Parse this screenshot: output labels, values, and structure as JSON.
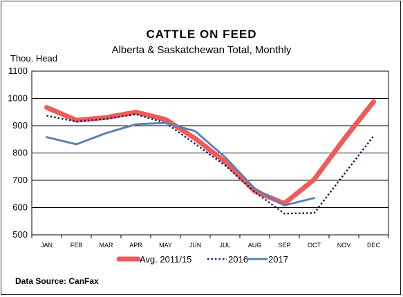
{
  "chart_data": {
    "type": "line",
    "title": "CATTLE  ON  FEED",
    "subtitle": "Alberta & Saskatchewan Total, Monthly",
    "ylabel": "Thou. Head",
    "xlabel": "",
    "categories": [
      "JAN",
      "FEB",
      "MAR",
      "APR",
      "MAY",
      "JUN",
      "JUL",
      "AUG",
      "SEP",
      "OCT",
      "NOV",
      "DEC"
    ],
    "ylim": [
      500,
      1100
    ],
    "yticks": [
      500,
      600,
      700,
      800,
      900,
      1000,
      1100
    ],
    "grid": true,
    "legend_position": "bottom",
    "series": [
      {
        "name": "Avg. 2011/15",
        "color": "#f05a5a",
        "style": "thick",
        "values": [
          967,
          920,
          930,
          950,
          923,
          853,
          768,
          660,
          615,
          703,
          850,
          988
        ]
      },
      {
        "name": "2016",
        "color": "#13225e",
        "style": "dotted",
        "values": [
          937,
          915,
          925,
          942,
          910,
          833,
          755,
          657,
          578,
          580,
          null,
          862
        ]
      },
      {
        "name": "2017",
        "color": "#5b82b6",
        "style": "solid",
        "values": [
          858,
          832,
          873,
          905,
          910,
          880,
          785,
          670,
          608,
          635,
          null,
          null
        ]
      }
    ],
    "source": "Data Source:  CanFax"
  }
}
